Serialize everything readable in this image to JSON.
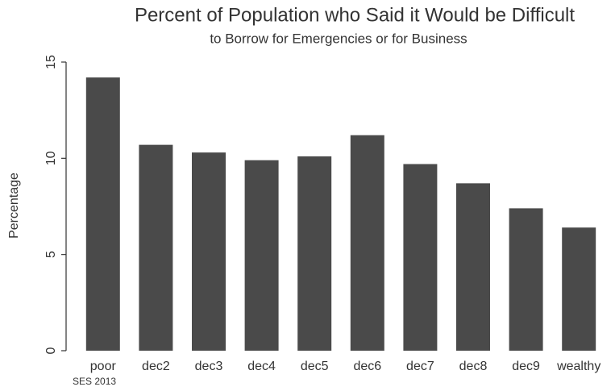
{
  "chart_data": {
    "type": "bar",
    "title": "Percent of Population who Said it Would be Difficult",
    "subtitle": "to Borrow for Emergencies or for Business",
    "y_label": "Percentage",
    "note": "SES 2013",
    "categories": [
      "poor",
      "dec2",
      "dec3",
      "dec4",
      "dec5",
      "dec6",
      "dec7",
      "dec8",
      "dec9",
      "wealthy"
    ],
    "values": [
      14.2,
      10.7,
      10.3,
      9.9,
      10.1,
      11.2,
      9.7,
      8.7,
      7.4,
      6.4
    ],
    "color": "#4a4a4a",
    "ylim": [
      0,
      15
    ],
    "yticks": [
      0,
      5,
      10,
      15
    ],
    "grid": false
  }
}
